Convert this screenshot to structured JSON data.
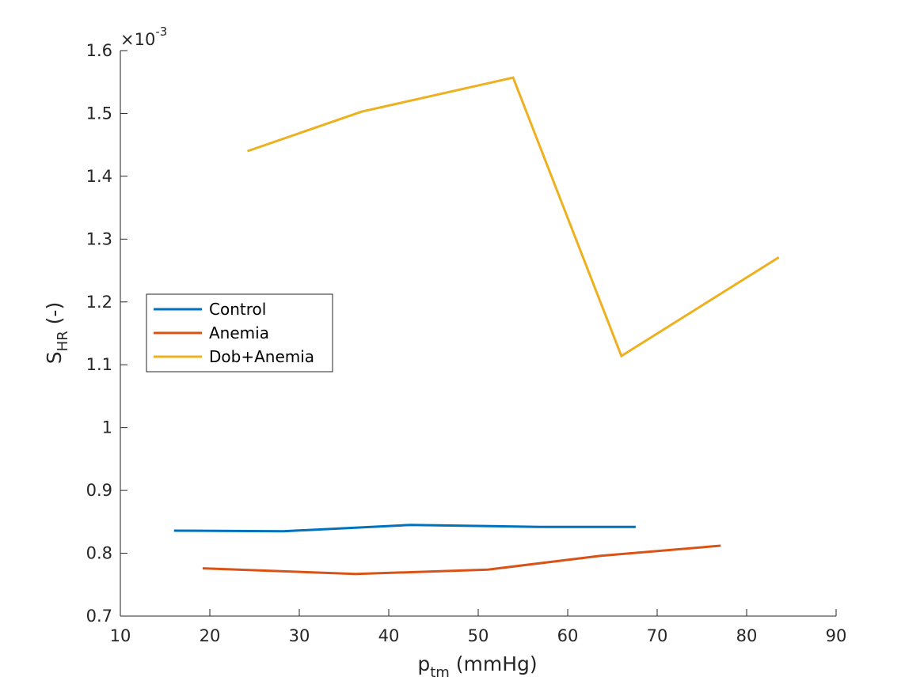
{
  "chart_data": {
    "type": "line",
    "xlabel": {
      "main": "p",
      "sub": "tm",
      "rest": " (mmHg)"
    },
    "ylabel": {
      "main": "S",
      "sub": "HR",
      "rest": " (-)"
    },
    "y_multiplier": {
      "prefix": "×10",
      "exponent": "-3"
    },
    "xlim": [
      10,
      90
    ],
    "ylim": [
      0.7,
      1.6
    ],
    "x_ticks": [
      10,
      20,
      30,
      40,
      50,
      60,
      70,
      80,
      90
    ],
    "x_tick_labels": [
      "10",
      "20",
      "30",
      "40",
      "50",
      "60",
      "70",
      "80",
      "90"
    ],
    "y_ticks": [
      0.7,
      0.8,
      0.9,
      1.0,
      1.1,
      1.2,
      1.3,
      1.4,
      1.5,
      1.6
    ],
    "y_tick_labels": [
      "0.7",
      "0.8",
      "0.9",
      "1",
      "1.1",
      "1.2",
      "1.3",
      "1.4",
      "1.5",
      "1.6"
    ],
    "grid": false,
    "legend_position": "center-left",
    "series": [
      {
        "name": "Control",
        "color": "#0072BD",
        "x": [
          16,
          28.2,
          42.4,
          56.8,
          67.6
        ],
        "y": [
          0.836,
          0.835,
          0.845,
          0.842,
          0.842
        ]
      },
      {
        "name": "Anemia",
        "color": "#D95319",
        "x": [
          19.2,
          36.3,
          51.1,
          63.7,
          77.1
        ],
        "y": [
          0.776,
          0.767,
          0.774,
          0.796,
          0.812
        ]
      },
      {
        "name": "Dob+Anemia",
        "color": "#EDB120",
        "x": [
          24.2,
          37.0,
          53.9,
          66.0,
          83.6
        ],
        "y": [
          1.44,
          1.503,
          1.557,
          1.114,
          1.271
        ]
      }
    ]
  }
}
